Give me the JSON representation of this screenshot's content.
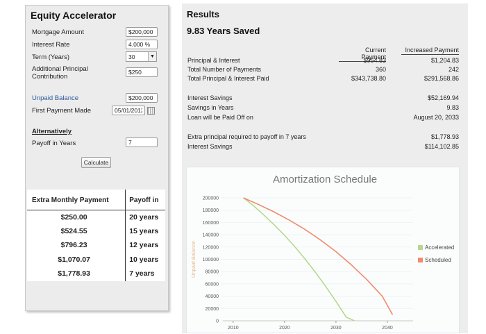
{
  "left": {
    "title": "Equity Accelerator",
    "mortgage_amount": {
      "label": "Mortgage Amount",
      "value": "$200,000"
    },
    "interest_rate": {
      "label": "Interest Rate",
      "value": "4.000 %"
    },
    "term": {
      "label": "Term (Years)",
      "value": "30"
    },
    "additional_principal": {
      "label_line1": "Additional Principal",
      "label_line2": "Contribution",
      "value": "$250"
    },
    "unpaid_balance": {
      "label": "Unpaid Balance",
      "value": "$200,000"
    },
    "first_payment": {
      "label": "First Payment Made",
      "value": "05/01/2012"
    },
    "alternatively": "Alternatively",
    "payoff_years": {
      "label": "Payoff in Years",
      "value": "7"
    },
    "calculate_label": "Calculate"
  },
  "payoff_table": {
    "headers": [
      "Extra Monthly Payment",
      "Payoff in"
    ],
    "rows": [
      [
        "$250.00",
        "20 years"
      ],
      [
        "$524.55",
        "15 years"
      ],
      [
        "$796.23",
        "12 years"
      ],
      [
        "$1,070.07",
        "10 years"
      ],
      [
        "$1,778.93",
        "7 years"
      ]
    ]
  },
  "results": {
    "title": "Results",
    "subtitle": "9.83 Years Saved",
    "col_current": "Current Payment",
    "col_increased": "Increased Payment",
    "principal_interest": {
      "label": "Principal & Interest",
      "current": "$954.83",
      "increased": "$1,204.83"
    },
    "num_payments": {
      "label": "Total Number of Payments",
      "current": "360",
      "increased": "242"
    },
    "total_paid": {
      "label": "Total Principal & Interest Paid",
      "current": "$343,738.80",
      "increased": "$291,568.86"
    },
    "interest_savings": {
      "label": "Interest Savings",
      "value": "$52,169.94"
    },
    "savings_years": {
      "label": "Savings in Years",
      "value": "9.83"
    },
    "paid_off_on": {
      "label": "Loan will be Paid Off on",
      "value": "August 20, 2033"
    },
    "extra_principal": {
      "label": "Extra principal required to payoff in 7 years",
      "value": "$1,778.93"
    },
    "interest_savings2": {
      "label": "Interest Savings",
      "value": "$114,102.85"
    }
  },
  "chart_data": {
    "type": "line",
    "title": "Amortization Schedule",
    "ylabel": "Unpaid Balance",
    "xlabel": "",
    "xlim": [
      2008,
      2045
    ],
    "ylim": [
      0,
      200000
    ],
    "yticks": [
      "200000",
      "180000",
      "160000",
      "140000",
      "120000",
      "100000",
      "80000",
      "60000",
      "40000",
      "20000",
      "0"
    ],
    "xticks": [
      "2010",
      "2020",
      "2030",
      "2040"
    ],
    "legend_position": "right",
    "series": [
      {
        "name": "Accelerated",
        "color": "#b5d88e",
        "x": [
          2012,
          2014,
          2016,
          2018,
          2020,
          2022,
          2024,
          2026,
          2028,
          2030,
          2032,
          2033.6
        ],
        "values": [
          200000,
          187000,
          172000,
          156000,
          139000,
          120500,
          100500,
          79000,
          56000,
          31500,
          6000,
          0
        ]
      },
      {
        "name": "Scheduled",
        "color": "#f08a6c",
        "x": [
          2012,
          2015,
          2018,
          2021,
          2024,
          2027,
          2030,
          2033,
          2036,
          2039,
          2041
        ],
        "values": [
          200000,
          189000,
          177000,
          163500,
          148500,
          131500,
          112500,
          91000,
          67000,
          40000,
          10000
        ]
      }
    ]
  }
}
